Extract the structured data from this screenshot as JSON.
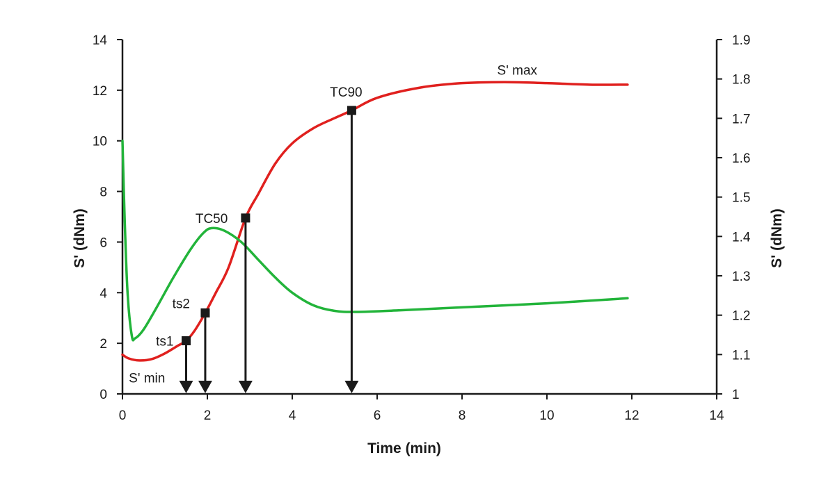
{
  "chart_data": {
    "type": "line",
    "title": "",
    "xlabel": "Time (min)",
    "ylabel_left": "S' (dNm)",
    "ylabel_right": "S' (dNm)",
    "xlim": [
      0,
      14
    ],
    "ylim_left": [
      0,
      14
    ],
    "ylim_right": [
      1,
      1.9
    ],
    "x_ticks": [
      "0",
      "2",
      "4",
      "6",
      "8",
      "10",
      "12",
      "14"
    ],
    "y_left_ticks": [
      "0",
      "2",
      "4",
      "6",
      "8",
      "10",
      "12",
      "14"
    ],
    "y_right_ticks": [
      "1",
      "1.1",
      "1.2",
      "1.3",
      "1.4",
      "1.5",
      "1.6",
      "1.7",
      "1.8",
      "1.9"
    ],
    "grid": false,
    "legend": "none",
    "series": [
      {
        "axis": "left",
        "color": "#e0201e",
        "points": [
          [
            0,
            1.55
          ],
          [
            0.15,
            1.4
          ],
          [
            0.4,
            1.32
          ],
          [
            0.7,
            1.38
          ],
          [
            1.0,
            1.6
          ],
          [
            1.3,
            1.9
          ],
          [
            1.5,
            2.1
          ],
          [
            1.7,
            2.5
          ],
          [
            1.95,
            3.2
          ],
          [
            2.2,
            4.0
          ],
          [
            2.5,
            5.0
          ],
          [
            2.9,
            6.95
          ],
          [
            3.2,
            7.9
          ],
          [
            3.6,
            9.1
          ],
          [
            4.0,
            9.9
          ],
          [
            4.5,
            10.5
          ],
          [
            5.0,
            10.9
          ],
          [
            5.4,
            11.2
          ],
          [
            6.0,
            11.7
          ],
          [
            7.0,
            12.1
          ],
          [
            8.0,
            12.28
          ],
          [
            9.0,
            12.32
          ],
          [
            10.0,
            12.28
          ],
          [
            11.0,
            12.22
          ],
          [
            11.9,
            12.22
          ]
        ]
      },
      {
        "axis": "left",
        "color": "#22b43a",
        "points": [
          [
            0,
            10.0
          ],
          [
            0.05,
            7.0
          ],
          [
            0.12,
            4.0
          ],
          [
            0.22,
            2.3
          ],
          [
            0.3,
            2.2
          ],
          [
            0.5,
            2.55
          ],
          [
            0.8,
            3.4
          ],
          [
            1.2,
            4.6
          ],
          [
            1.6,
            5.7
          ],
          [
            1.9,
            6.35
          ],
          [
            2.1,
            6.55
          ],
          [
            2.4,
            6.45
          ],
          [
            2.8,
            6.0
          ],
          [
            3.2,
            5.3
          ],
          [
            3.6,
            4.6
          ],
          [
            4.0,
            4.0
          ],
          [
            4.5,
            3.5
          ],
          [
            5.0,
            3.28
          ],
          [
            5.5,
            3.24
          ],
          [
            6.5,
            3.3
          ],
          [
            8.0,
            3.42
          ],
          [
            10.0,
            3.58
          ],
          [
            11.9,
            3.78
          ]
        ]
      }
    ],
    "markers": [
      {
        "label": "ts1",
        "x": 1.5,
        "y": 2.1
      },
      {
        "label": "ts2",
        "x": 1.95,
        "y": 3.2
      },
      {
        "label": "",
        "x": 2.9,
        "y": 6.95
      },
      {
        "label": "TC90",
        "x": 5.4,
        "y": 11.2
      }
    ],
    "annotations": [
      {
        "text": "S' min",
        "x": 0.15,
        "y": 0.65
      },
      {
        "text": "TC50",
        "x": 2.1,
        "y": 6.95
      },
      {
        "text": "S' max",
        "x": 9.3,
        "y": 12.8
      }
    ]
  }
}
